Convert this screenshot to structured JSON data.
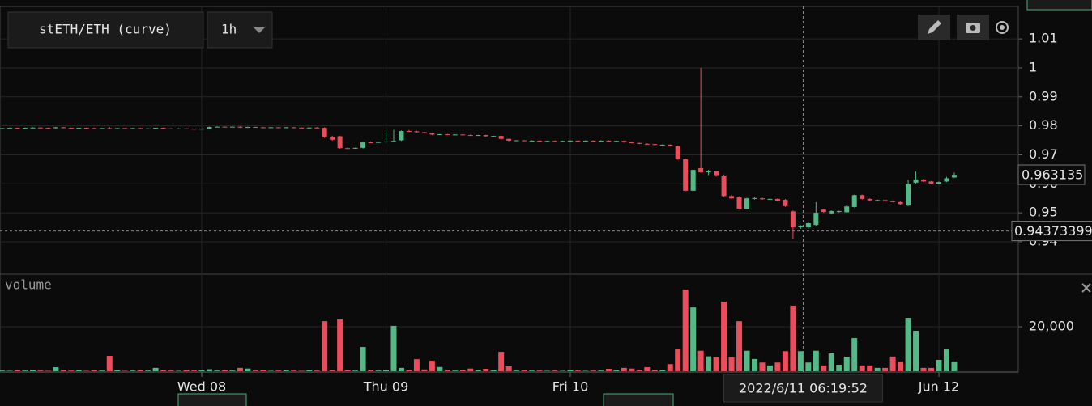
{
  "chart_data": {
    "type": "candlestick",
    "title": "stETH/ETH (curve)",
    "interval": "1h",
    "up_color": "#53b987",
    "down_color": "#eb4d5c",
    "grid": true,
    "xlim": [
      -26.27,
      106.34
    ],
    "xticks": [
      {
        "value": 0,
        "label": "Wed 08"
      },
      {
        "value": 24,
        "label": "Thu 09"
      },
      {
        "value": 48,
        "label": "Fri 10"
      },
      {
        "value": 96,
        "label": "Jun 12"
      }
    ],
    "ylim": [
      0.9291,
      1.0212
    ],
    "yticks": [
      0.94,
      0.95,
      0.96,
      0.97,
      0.98,
      0.99,
      1,
      1.01
    ],
    "volume_title": "volume",
    "volume_ylim": [
      0,
      43300
    ],
    "volume_yticks": [
      {
        "value": 20000,
        "label": "20,000"
      }
    ],
    "last_price": 0.963135,
    "crosshair": {
      "x": 78.33,
      "x_label": "2022/6/11 06:19:52",
      "y": 0.94373399
    },
    "x": [
      -26,
      -25,
      -24,
      -23,
      -22,
      -21,
      -20,
      -19,
      -18,
      -17,
      -16,
      -15,
      -14,
      -13,
      -12,
      -11,
      -10,
      -9,
      -8,
      -7,
      -6,
      -5,
      -4,
      -3,
      -2,
      -1,
      0,
      1,
      2,
      3,
      4,
      5,
      6,
      7,
      8,
      9,
      10,
      11,
      12,
      13,
      14,
      15,
      16,
      17,
      18,
      19,
      20,
      21,
      22,
      23,
      24,
      25,
      26,
      27,
      28,
      29,
      30,
      31,
      32,
      33,
      34,
      35,
      36,
      37,
      38,
      39,
      40,
      41,
      42,
      43,
      44,
      45,
      46,
      47,
      48,
      49,
      50,
      51,
      52,
      53,
      54,
      55,
      56,
      57,
      58,
      59,
      60,
      61,
      62,
      63,
      64,
      65,
      66,
      67,
      68,
      69,
      70,
      71,
      72,
      73,
      74,
      75,
      76,
      77,
      78,
      79,
      80,
      81,
      82,
      83,
      84,
      85,
      86,
      87,
      88,
      89,
      90,
      91,
      92,
      93,
      94,
      95,
      96,
      97,
      98
    ],
    "open": [
      0.9791,
      0.9792,
      0.9793,
      0.9792,
      0.9793,
      0.9794,
      0.9793,
      0.9792,
      0.9795,
      0.9793,
      0.9792,
      0.9793,
      0.9792,
      0.9791,
      0.9792,
      0.979,
      0.9792,
      0.9791,
      0.9792,
      0.979,
      0.9791,
      0.9793,
      0.9791,
      0.979,
      0.9791,
      0.979,
      0.9789,
      0.979,
      0.9796,
      0.9797,
      0.9796,
      0.9797,
      0.9794,
      0.9796,
      0.9795,
      0.9794,
      0.9795,
      0.9794,
      0.9795,
      0.9794,
      0.9793,
      0.9794,
      0.9793,
      0.9762,
      0.9764,
      0.9723,
      0.9722,
      0.9724,
      0.9743,
      0.9742,
      0.9744,
      0.9746,
      0.975,
      0.9782,
      0.9781,
      0.9778,
      0.9775,
      0.977,
      0.9771,
      0.9769,
      0.977,
      0.9768,
      0.9767,
      0.9768,
      0.9764,
      0.9765,
      0.9755,
      0.9749,
      0.975,
      0.9748,
      0.9749,
      0.9747,
      0.9748,
      0.9747,
      0.9748,
      0.9749,
      0.9748,
      0.9749,
      0.9748,
      0.9749,
      0.9747,
      0.9748,
      0.9743,
      0.9741,
      0.9738,
      0.9737,
      0.9734,
      0.9735,
      0.973,
      0.9685,
      0.9576,
      0.9654,
      0.964,
      0.9643,
      0.9628,
      0.9558,
      0.9554,
      0.9514,
      0.9548,
      0.955,
      0.9547,
      0.9548,
      0.9545,
      0.9505,
      0.945,
      0.945,
      0.9458,
      0.9511,
      0.9498,
      0.9504,
      0.9502,
      0.952,
      0.9561,
      0.9548,
      0.9543,
      0.9544,
      0.954,
      0.9537,
      0.9525,
      0.9604,
      0.9615,
      0.9608,
      0.96,
      0.9608,
      0.9622
    ],
    "high": [
      0.9793,
      0.9794,
      0.9794,
      0.9794,
      0.9795,
      0.9795,
      0.9794,
      0.9796,
      0.9796,
      0.9794,
      0.9794,
      0.9794,
      0.9793,
      0.9793,
      0.9796,
      0.9793,
      0.9793,
      0.9793,
      0.9793,
      0.9792,
      0.9794,
      0.9794,
      0.9792,
      0.9792,
      0.9792,
      0.9791,
      0.9791,
      0.9797,
      0.9798,
      0.9798,
      0.9798,
      0.9798,
      0.9797,
      0.9797,
      0.9796,
      0.9796,
      0.9796,
      0.9796,
      0.9796,
      0.9795,
      0.9795,
      0.9796,
      0.9795,
      0.9766,
      0.9766,
      0.9725,
      0.9725,
      0.9745,
      0.9745,
      0.9745,
      0.9785,
      0.9786,
      0.9784,
      0.9786,
      0.9783,
      0.9779,
      0.9777,
      0.9772,
      0.9772,
      0.9771,
      0.9771,
      0.977,
      0.9769,
      0.9769,
      0.9766,
      0.9766,
      0.9756,
      0.9751,
      0.9751,
      0.975,
      0.975,
      0.9749,
      0.975,
      0.9749,
      0.975,
      0.975,
      0.975,
      0.975,
      0.975,
      0.975,
      0.9749,
      0.9749,
      0.9745,
      0.9742,
      0.974,
      0.9738,
      0.9736,
      0.9736,
      0.9732,
      0.9687,
      0.965,
      1.0,
      0.9648,
      0.9645,
      0.9632,
      0.9562,
      0.9557,
      0.9552,
      0.9553,
      0.9552,
      0.9549,
      0.955,
      0.9548,
      0.9508,
      0.9457,
      0.9468,
      0.9537,
      0.9514,
      0.9508,
      0.9507,
      0.9525,
      0.9563,
      0.9563,
      0.955,
      0.9546,
      0.9546,
      0.9543,
      0.9539,
      0.9614,
      0.9642,
      0.9617,
      0.961,
      0.9608,
      0.9624,
      0.9639
    ],
    "low": [
      0.9789,
      0.979,
      0.9791,
      0.9791,
      0.9792,
      0.9792,
      0.9791,
      0.9791,
      0.9792,
      0.9791,
      0.979,
      0.9791,
      0.979,
      0.979,
      0.9789,
      0.9789,
      0.979,
      0.979,
      0.9789,
      0.9789,
      0.979,
      0.979,
      0.9789,
      0.9789,
      0.9789,
      0.9788,
      0.9788,
      0.9789,
      0.9795,
      0.9795,
      0.9795,
      0.9793,
      0.9793,
      0.9794,
      0.9793,
      0.9793,
      0.9793,
      0.9793,
      0.9793,
      0.9792,
      0.9792,
      0.9792,
      0.9758,
      0.9748,
      0.9721,
      0.972,
      0.9721,
      0.9722,
      0.9741,
      0.9741,
      0.9742,
      0.9744,
      0.9748,
      0.9779,
      0.9777,
      0.9774,
      0.9768,
      0.9768,
      0.9768,
      0.9768,
      0.9767,
      0.9766,
      0.9766,
      0.9763,
      0.9762,
      0.9752,
      0.9747,
      0.9748,
      0.9747,
      0.9747,
      0.9746,
      0.9746,
      0.9746,
      0.9746,
      0.9747,
      0.9747,
      0.9747,
      0.9747,
      0.9747,
      0.9746,
      0.9746,
      0.9742,
      0.974,
      0.9737,
      0.9735,
      0.9733,
      0.9732,
      0.9729,
      0.9683,
      0.9574,
      0.9574,
      0.9638,
      0.963,
      0.9625,
      0.9555,
      0.9547,
      0.9512,
      0.9512,
      0.9546,
      0.9545,
      0.9545,
      0.954,
      0.952,
      0.9408,
      0.9445,
      0.9446,
      0.9455,
      0.95,
      0.9496,
      0.9501,
      0.95,
      0.9518,
      0.9546,
      0.9541,
      0.9541,
      0.9539,
      0.9536,
      0.9528,
      0.9523,
      0.96,
      0.9606,
      0.9598,
      0.9598,
      0.9606,
      0.962
    ],
    "close": [
      0.9792,
      0.9793,
      0.9792,
      0.9793,
      0.9794,
      0.9793,
      0.9792,
      0.9795,
      0.9793,
      0.9792,
      0.9793,
      0.9792,
      0.9791,
      0.9792,
      0.979,
      0.9792,
      0.9791,
      0.9792,
      0.979,
      0.9791,
      0.9793,
      0.9791,
      0.979,
      0.9791,
      0.979,
      0.9789,
      0.979,
      0.9796,
      0.9797,
      0.9796,
      0.9797,
      0.9794,
      0.9796,
      0.9795,
      0.9794,
      0.9795,
      0.9794,
      0.9795,
      0.9794,
      0.9793,
      0.9794,
      0.9793,
      0.9762,
      0.9752,
      0.9723,
      0.9722,
      0.9724,
      0.9743,
      0.9742,
      0.9744,
      0.9746,
      0.9748,
      0.9782,
      0.9781,
      0.9778,
      0.9775,
      0.977,
      0.9771,
      0.9769,
      0.977,
      0.9768,
      0.9767,
      0.9768,
      0.9764,
      0.9765,
      0.9755,
      0.9749,
      0.975,
      0.9748,
      0.9749,
      0.9747,
      0.9748,
      0.9747,
      0.9748,
      0.9749,
      0.9748,
      0.9749,
      0.9748,
      0.9749,
      0.9747,
      0.9748,
      0.9743,
      0.9741,
      0.9738,
      0.9737,
      0.9734,
      0.9735,
      0.973,
      0.9685,
      0.9576,
      0.9648,
      0.964,
      0.9645,
      0.963,
      0.9558,
      0.955,
      0.9514,
      0.955,
      0.9551,
      0.9547,
      0.9548,
      0.9542,
      0.9523,
      0.945,
      0.9456,
      0.9464,
      0.95,
      0.9503,
      0.9506,
      0.9506,
      0.9522,
      0.9561,
      0.9548,
      0.9543,
      0.9544,
      0.9541,
      0.9538,
      0.953,
      0.9598,
      0.9615,
      0.9608,
      0.96,
      0.9606,
      0.9619,
      0.9631
    ],
    "volume": [
      300,
      200,
      400,
      300,
      500,
      300,
      200,
      1800,
      700,
      300,
      400,
      200,
      500,
      300,
      6900,
      400,
      200,
      300,
      500,
      300,
      1500,
      400,
      300,
      200,
      500,
      300,
      400,
      900,
      300,
      400,
      300,
      1500,
      1200,
      300,
      400,
      200,
      300,
      400,
      300,
      200,
      400,
      300,
      22500,
      600,
      23300,
      500,
      300,
      10900,
      400,
      300,
      700,
      20400,
      1500,
      400,
      5400,
      800,
      4700,
      1900,
      500,
      300,
      400,
      1200,
      600,
      1100,
      400,
      8700,
      2200,
      300,
      400,
      300,
      300,
      200,
      300,
      200,
      400,
      300,
      200,
      300,
      300,
      1100,
      400,
      1500,
      1200,
      500,
      1800,
      600,
      400,
      3200,
      9800,
      36700,
      28700,
      9200,
      6700,
      6300,
      31300,
      6300,
      22500,
      9200,
      5500,
      3900,
      2600,
      3900,
      9000,
      29500,
      9000,
      3900,
      9200,
      2600,
      8000,
      2900,
      6500,
      14900,
      2600,
      2600,
      1500,
      1500,
      6600,
      4400,
      24000,
      18200,
      1500,
      1500,
      5100,
      9800,
      4400
    ]
  }
}
